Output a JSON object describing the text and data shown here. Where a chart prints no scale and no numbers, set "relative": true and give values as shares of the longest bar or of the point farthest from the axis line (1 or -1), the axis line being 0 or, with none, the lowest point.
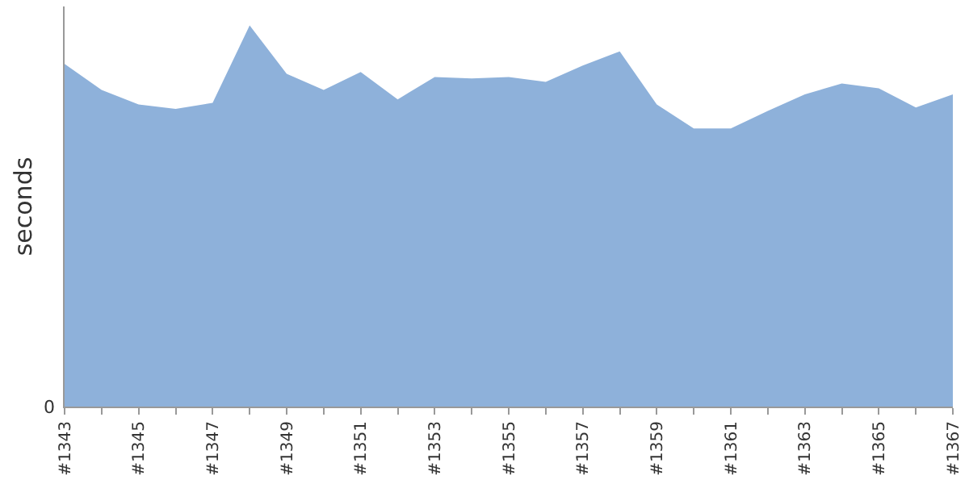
{
  "chart_data": {
    "type": "area",
    "relative": true,
    "ylabel": "seconds",
    "color": "#8eb1da",
    "categories": [
      "#1343",
      null,
      "#1345",
      null,
      "#1347",
      null,
      "#1349",
      null,
      "#1351",
      null,
      "#1353",
      null,
      "#1355",
      null,
      "#1357",
      null,
      "#1359",
      null,
      "#1361",
      null,
      "#1363",
      null,
      "#1365",
      null,
      "#1367"
    ],
    "values": [
      0.899,
      0.831,
      0.793,
      0.781,
      0.797,
      1,
      0.873,
      0.831,
      0.878,
      0.806,
      0.865,
      0.861,
      0.865,
      0.852,
      0.895,
      0.932,
      0.793,
      0.73,
      0.73,
      0.776,
      0.819,
      0.848,
      0.835,
      0.785,
      0.819
    ],
    "annotations": [
      "0"
    ]
  }
}
